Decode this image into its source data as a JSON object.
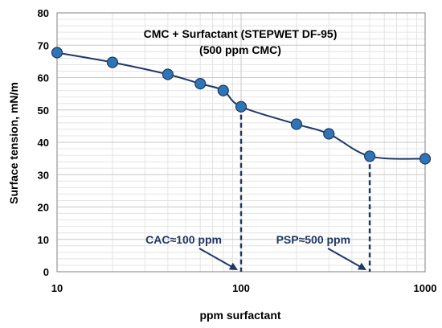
{
  "chart_data": {
    "type": "scatter",
    "title": "CMC + Surfactant (STEPWET DF-95)",
    "subtitle": "(500 ppm CMC)",
    "xlabel": "ppm surfactant",
    "ylabel": "Surface tension, mN/m",
    "xscale": "log",
    "xlim": [
      10,
      1000
    ],
    "ylim": [
      0,
      80
    ],
    "xticks": [
      "10",
      "100",
      "1000"
    ],
    "yticks": [
      "0",
      "10",
      "20",
      "30",
      "40",
      "50",
      "60",
      "70",
      "80"
    ],
    "grid": true,
    "series": [
      {
        "x": [
          10,
          20,
          40,
          60,
          80,
          100,
          200,
          300,
          500,
          1000
        ],
        "y": [
          67.7,
          64.7,
          61.0,
          58.1,
          56.0,
          51.0,
          45.6,
          42.6,
          35.7,
          34.9
        ],
        "marker_color": "#2e75b6",
        "line_color": "#1f3864"
      }
    ],
    "annotations": [
      {
        "text": "CAC≈100 ppm",
        "x": 100
      },
      {
        "text": "PSP≈500 ppm",
        "x": 500
      }
    ]
  }
}
